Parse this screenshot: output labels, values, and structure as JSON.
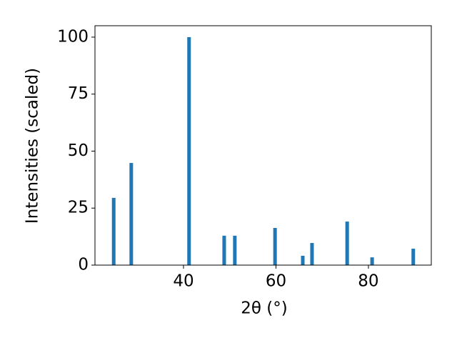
{
  "chart_data": {
    "type": "bar",
    "x": [
      24.9,
      28.7,
      41.2,
      48.8,
      51.1,
      59.8,
      65.8,
      67.8,
      75.4,
      80.8,
      89.7
    ],
    "values": [
      29.5,
      44.8,
      100,
      12.9,
      12.9,
      16.3,
      4.1,
      9.7,
      19.1,
      3.4,
      7.2
    ],
    "color": "#1f77b4",
    "xlabel": "2θ (°)",
    "ylabel": "Intensities (scaled)",
    "xlim": [
      20.85,
      93.6
    ],
    "xticks": [
      40,
      60,
      80
    ],
    "ylim": [
      0,
      105
    ],
    "yticks": [
      0,
      25,
      50,
      75,
      100
    ]
  }
}
